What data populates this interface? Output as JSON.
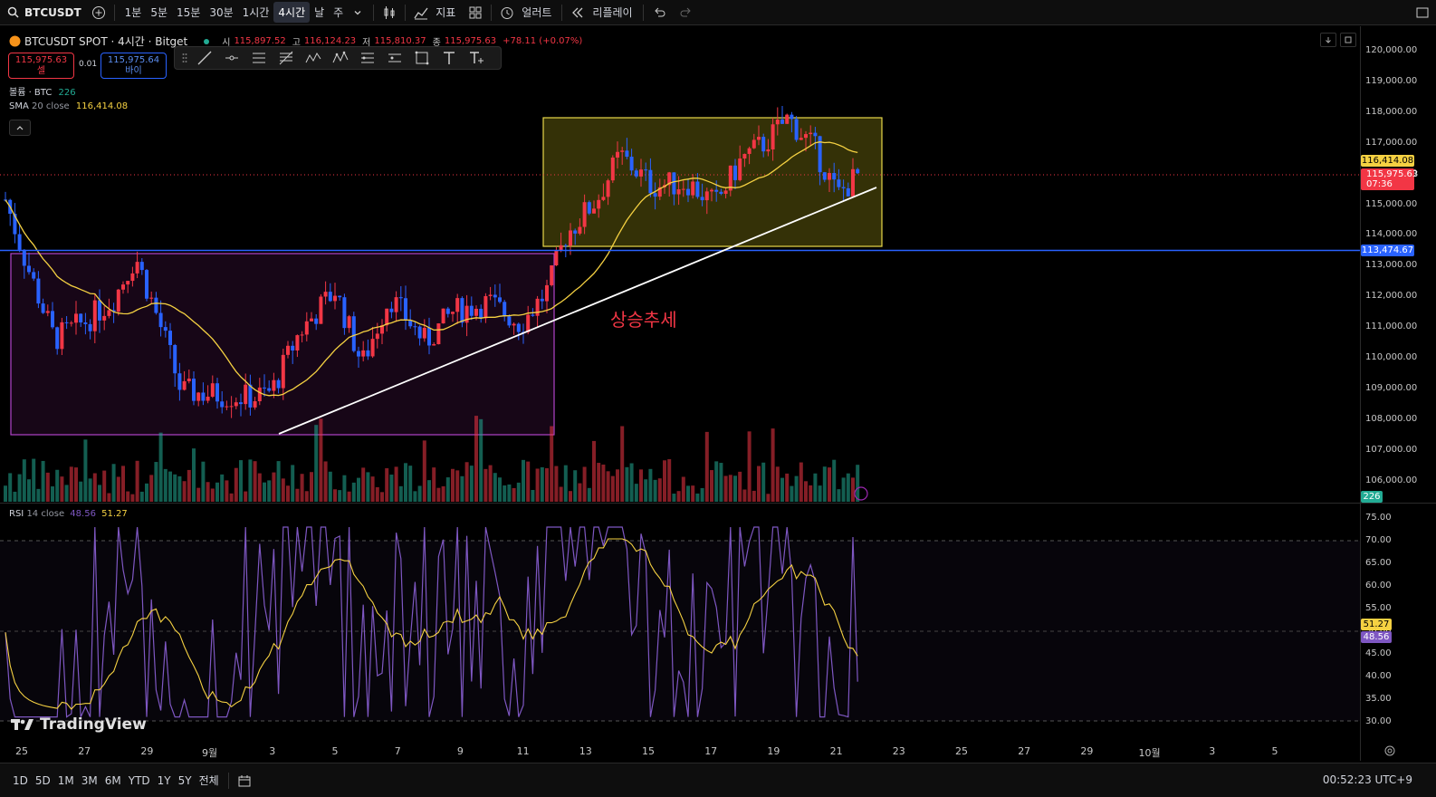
{
  "toolbar": {
    "symbol": "BTCUSDT",
    "intervals": [
      "1분",
      "5분",
      "15분",
      "30분",
      "1시간",
      "4시간",
      "날",
      "주"
    ],
    "active_interval": "4시간",
    "indicators_label": "지표",
    "alert_label": "얼러트",
    "replay_label": "리플레이"
  },
  "legend": {
    "title": "BTCUSDT SPOT · 4시간 · Bitget",
    "open_label": "시",
    "open": "115,897.52",
    "high_label": "고",
    "high": "116,124.23",
    "low_label": "저",
    "low": "115,810.37",
    "close_label": "종",
    "close": "115,975.63",
    "change": "+78.11 (+0.07%)",
    "sell_price": "115,975.63",
    "sell_label": "셀",
    "spread": "0.01",
    "buy_price": "115,975.64",
    "buy_label": "바이",
    "volume_label": "볼륨 · BTC",
    "volume_value": "226",
    "sma_label": "SMA",
    "sma_params": "20 close",
    "sma_value": "116,414.08"
  },
  "annotation": {
    "text": "상승추세"
  },
  "price_axis": {
    "ticks": [
      "120,000.00",
      "119,000.00",
      "118,000.00",
      "117,000.00",
      "116,000.00",
      "115,000.00",
      "114,000.00",
      "113,000.00",
      "112,000.00",
      "111,000.00",
      "110,000.00",
      "109,000.00",
      "108,000.00",
      "107,000.00",
      "106,000.00"
    ],
    "sma_badge": "116,414.08",
    "price_badge": "115,975.63",
    "countdown": "07:36",
    "hline_badge": "113,474.67",
    "volume_badge": "226"
  },
  "rsi": {
    "label": "RSI",
    "params": "14 close",
    "value": "48.56",
    "ma_value": "51.27",
    "ticks": [
      "75.00",
      "70.00",
      "65.00",
      "60.00",
      "55.00",
      "50.00",
      "45.00",
      "40.00",
      "35.00",
      "30.00"
    ]
  },
  "time_axis": {
    "ticks": [
      "25",
      "27",
      "29",
      "9월",
      "3",
      "5",
      "7",
      "9",
      "11",
      "13",
      "15",
      "17",
      "19",
      "21",
      "23",
      "25",
      "27",
      "29",
      "10월",
      "3",
      "5"
    ]
  },
  "watermark": "TradingView",
  "bottom": {
    "ranges": [
      "1D",
      "5D",
      "1M",
      "3M",
      "6M",
      "YTD",
      "1Y",
      "5Y",
      "전체"
    ],
    "clock": "00:52:23 UTC+9"
  },
  "colors": {
    "up": "#f23645",
    "down": "#2962ff",
    "sma": "#f5d142",
    "rsi": "#7e57c2",
    "hline": "#2962ff"
  }
}
